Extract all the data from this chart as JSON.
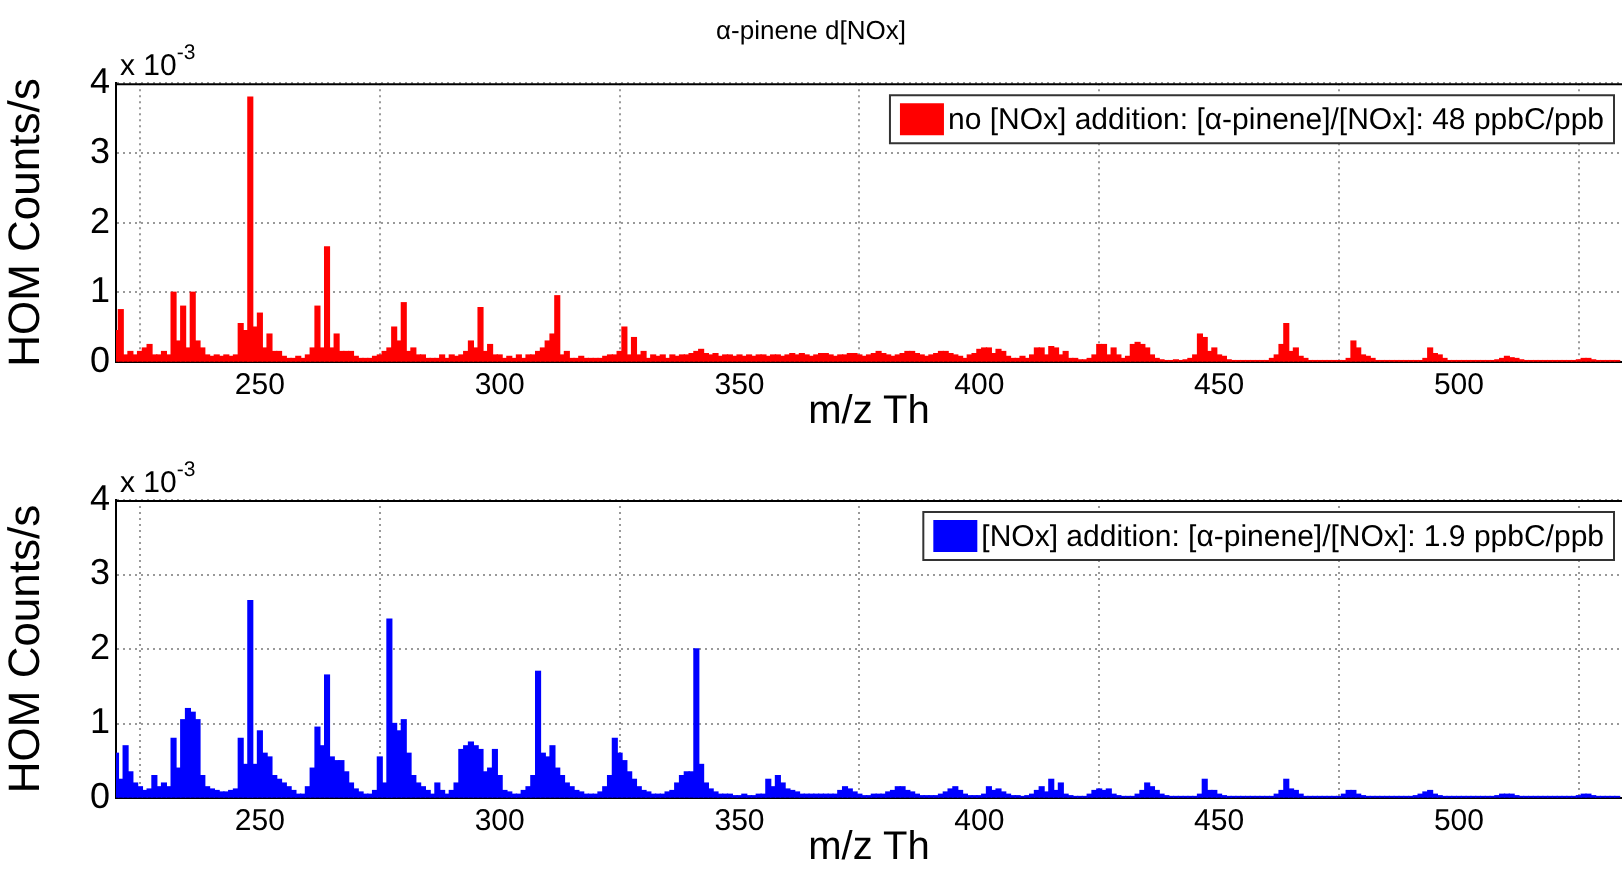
{
  "chart_data": [
    {
      "type": "bar",
      "title": "α-pinene d[NOx]",
      "xlabel": "m/z Th",
      "ylabel": "HOM Counts/s",
      "annotations": [
        "x 10$^{-3}$"
      ],
      "legend": "top right",
      "grid": true,
      "xlim": [
        220,
        534
      ],
      "xticks": [
        250,
        300,
        350,
        400,
        450,
        500
      ],
      "ylim": [
        0,
        4
      ],
      "yticks": [
        0,
        1,
        2,
        3,
        4
      ],
      "x": [
        220,
        221,
        222,
        223,
        224,
        225,
        226,
        227,
        228,
        229,
        230,
        231,
        232,
        233,
        234,
        235,
        236,
        237,
        238,
        239,
        240,
        241,
        242,
        243,
        244,
        245,
        246,
        247,
        248,
        249,
        250,
        251,
        252,
        253,
        254,
        255,
        256,
        257,
        258,
        259,
        260,
        261,
        262,
        263,
        264,
        265,
        266,
        267,
        268,
        269,
        270,
        271,
        272,
        273,
        274,
        275,
        276,
        277,
        278,
        279,
        280,
        281,
        282,
        283,
        284,
        285,
        286,
        287,
        288,
        289,
        290,
        291,
        292,
        293,
        294,
        295,
        296,
        297,
        298,
        299,
        300,
        301,
        302,
        303,
        304,
        305,
        306,
        307,
        308,
        309,
        310,
        311,
        312,
        313,
        314,
        315,
        316,
        317,
        318,
        319,
        320,
        321,
        322,
        323,
        324,
        325,
        326,
        327,
        328,
        329,
        330,
        331,
        332,
        333,
        334,
        335,
        336,
        337,
        338,
        339,
        340,
        341,
        342,
        343,
        344,
        345,
        346,
        347,
        348,
        349,
        350,
        351,
        352,
        353,
        354,
        355,
        356,
        357,
        358,
        359,
        360,
        361,
        362,
        363,
        364,
        365,
        366,
        367,
        368,
        369,
        370,
        371,
        372,
        373,
        374,
        375,
        376,
        377,
        378,
        379,
        380,
        381,
        382,
        383,
        384,
        385,
        386,
        387,
        388,
        389,
        390,
        391,
        392,
        393,
        394,
        395,
        396,
        397,
        398,
        399,
        400,
        401,
        402,
        403,
        404,
        405,
        406,
        407,
        408,
        409,
        410,
        411,
        412,
        413,
        414,
        415,
        416,
        417,
        418,
        419,
        420,
        421,
        422,
        423,
        424,
        425,
        426,
        427,
        428,
        429,
        430,
        431,
        432,
        433,
        434,
        435,
        436,
        437,
        438,
        439,
        440,
        441,
        442,
        443,
        444,
        445,
        446,
        447,
        448,
        449,
        450,
        451,
        452,
        453,
        454,
        455,
        456,
        457,
        458,
        459,
        460,
        461,
        462,
        463,
        464,
        465,
        466,
        467,
        468,
        469,
        470,
        471,
        472,
        473,
        474,
        475,
        476,
        477,
        478,
        479,
        480,
        481,
        482,
        483,
        484,
        485,
        486,
        487,
        488,
        489,
        490,
        491,
        492,
        493,
        494,
        495,
        496,
        497,
        498,
        499,
        500,
        501,
        502,
        503,
        504,
        505,
        506,
        507,
        508,
        509,
        510,
        511,
        512,
        513,
        514,
        515,
        516,
        517,
        518,
        519,
        520,
        521,
        522,
        523,
        524,
        525,
        526,
        527,
        528,
        529,
        530,
        531,
        532,
        533
      ],
      "series": [
        {
          "name": "no [NOx] addition: [α-pinene]/[NOx]: 48 ppbC/ppb",
          "color": "#ff0000",
          "values": [
            0.45,
            0.75,
            0.1,
            0.15,
            0.1,
            0.15,
            0.2,
            0.25,
            0.1,
            0.1,
            0.15,
            0.1,
            1.0,
            0.3,
            0.8,
            0.2,
            1.0,
            0.3,
            0.2,
            0.1,
            0.08,
            0.1,
            0.08,
            0.1,
            0.08,
            0.1,
            0.55,
            0.45,
            3.8,
            0.5,
            0.7,
            0.2,
            0.4,
            0.15,
            0.15,
            0.08,
            0.05,
            0.05,
            0.08,
            0.05,
            0.1,
            0.2,
            0.8,
            0.2,
            1.65,
            0.2,
            0.4,
            0.15,
            0.15,
            0.15,
            0.08,
            0.05,
            0.05,
            0.05,
            0.08,
            0.1,
            0.15,
            0.2,
            0.5,
            0.3,
            0.85,
            0.15,
            0.2,
            0.1,
            0.1,
            0.05,
            0.05,
            0.05,
            0.1,
            0.05,
            0.1,
            0.08,
            0.1,
            0.15,
            0.3,
            0.2,
            0.78,
            0.15,
            0.25,
            0.1,
            0.1,
            0.05,
            0.08,
            0.05,
            0.1,
            0.05,
            0.1,
            0.1,
            0.15,
            0.2,
            0.3,
            0.4,
            0.95,
            0.1,
            0.15,
            0.05,
            0.05,
            0.08,
            0.05,
            0.05,
            0.05,
            0.05,
            0.08,
            0.1,
            0.1,
            0.15,
            0.5,
            0.1,
            0.35,
            0.1,
            0.15,
            0.05,
            0.1,
            0.08,
            0.1,
            0.05,
            0.1,
            0.08,
            0.1,
            0.1,
            0.12,
            0.15,
            0.18,
            0.12,
            0.1,
            0.12,
            0.08,
            0.1,
            0.1,
            0.08,
            0.1,
            0.08,
            0.1,
            0.08,
            0.1,
            0.1,
            0.08,
            0.1,
            0.1,
            0.08,
            0.1,
            0.12,
            0.1,
            0.12,
            0.1,
            0.08,
            0.1,
            0.12,
            0.12,
            0.1,
            0.08,
            0.1,
            0.1,
            0.12,
            0.12,
            0.1,
            0.08,
            0.1,
            0.12,
            0.15,
            0.12,
            0.1,
            0.08,
            0.1,
            0.12,
            0.15,
            0.15,
            0.12,
            0.1,
            0.08,
            0.1,
            0.12,
            0.15,
            0.15,
            0.12,
            0.1,
            0.08,
            0.05,
            0.1,
            0.12,
            0.18,
            0.2,
            0.2,
            0.12,
            0.18,
            0.15,
            0.08,
            0.05,
            0.05,
            0.08,
            0.05,
            0.1,
            0.2,
            0.2,
            0.1,
            0.22,
            0.2,
            0.1,
            0.15,
            0.05,
            0.05,
            0.03,
            0.03,
            0.05,
            0.1,
            0.25,
            0.25,
            0.1,
            0.2,
            0.1,
            0.05,
            0.08,
            0.25,
            0.28,
            0.25,
            0.2,
            0.1,
            0.05,
            0.03,
            0.02,
            0.02,
            0.03,
            0.02,
            0.03,
            0.05,
            0.1,
            0.4,
            0.35,
            0.15,
            0.2,
            0.1,
            0.08,
            0.03,
            0.02,
            0.02,
            0.02,
            0.02,
            0.02,
            0.02,
            0.02,
            0.02,
            0.05,
            0.1,
            0.25,
            0.55,
            0.15,
            0.2,
            0.08,
            0.05,
            0.02,
            0.02,
            0.02,
            0.02,
            0.02,
            0.02,
            0.02,
            0.02,
            0.05,
            0.3,
            0.2,
            0.1,
            0.08,
            0.05,
            0.02,
            0.02,
            0.02,
            0.02,
            0.02,
            0.02,
            0.02,
            0.02,
            0.02,
            0.02,
            0.05,
            0.2,
            0.12,
            0.1,
            0.05,
            0.02,
            0.02,
            0.02,
            0.02,
            0.02,
            0.02,
            0.02,
            0.02,
            0.02,
            0.02,
            0.03,
            0.05,
            0.08,
            0.06,
            0.05,
            0.03,
            0.02,
            0.02,
            0.02,
            0.02,
            0.02,
            0.02,
            0.02,
            0.02,
            0.02,
            0.02,
            0.02,
            0.03,
            0.05,
            0.05,
            0.03,
            0.02,
            0.02,
            0.02,
            0.02,
            0.02
          ]
        }
      ]
    },
    {
      "type": "bar",
      "xlabel": "m/z Th",
      "ylabel": "HOM Counts/s",
      "annotations": [
        "x 10$^{-3}$"
      ],
      "legend": "top right",
      "grid": true,
      "xlim": [
        220,
        534
      ],
      "xticks": [
        250,
        300,
        350,
        400,
        450,
        500
      ],
      "ylim": [
        0,
        4
      ],
      "yticks": [
        0,
        1,
        2,
        3,
        4
      ],
      "x": [
        220,
        221,
        222,
        223,
        224,
        225,
        226,
        227,
        228,
        229,
        230,
        231,
        232,
        233,
        234,
        235,
        236,
        237,
        238,
        239,
        240,
        241,
        242,
        243,
        244,
        245,
        246,
        247,
        248,
        249,
        250,
        251,
        252,
        253,
        254,
        255,
        256,
        257,
        258,
        259,
        260,
        261,
        262,
        263,
        264,
        265,
        266,
        267,
        268,
        269,
        270,
        271,
        272,
        273,
        274,
        275,
        276,
        277,
        278,
        279,
        280,
        281,
        282,
        283,
        284,
        285,
        286,
        287,
        288,
        289,
        290,
        291,
        292,
        293,
        294,
        295,
        296,
        297,
        298,
        299,
        300,
        301,
        302,
        303,
        304,
        305,
        306,
        307,
        308,
        309,
        310,
        311,
        312,
        313,
        314,
        315,
        316,
        317,
        318,
        319,
        320,
        321,
        322,
        323,
        324,
        325,
        326,
        327,
        328,
        329,
        330,
        331,
        332,
        333,
        334,
        335,
        336,
        337,
        338,
        339,
        340,
        341,
        342,
        343,
        344,
        345,
        346,
        347,
        348,
        349,
        350,
        351,
        352,
        353,
        354,
        355,
        356,
        357,
        358,
        359,
        360,
        361,
        362,
        363,
        364,
        365,
        366,
        367,
        368,
        369,
        370,
        371,
        372,
        373,
        374,
        375,
        376,
        377,
        378,
        379,
        380,
        381,
        382,
        383,
        384,
        385,
        386,
        387,
        388,
        389,
        390,
        391,
        392,
        393,
        394,
        395,
        396,
        397,
        398,
        399,
        400,
        401,
        402,
        403,
        404,
        405,
        406,
        407,
        408,
        409,
        410,
        411,
        412,
        413,
        414,
        415,
        416,
        417,
        418,
        419,
        420,
        421,
        422,
        423,
        424,
        425,
        426,
        427,
        428,
        429,
        430,
        431,
        432,
        433,
        434,
        435,
        436,
        437,
        438,
        439,
        440,
        441,
        442,
        443,
        444,
        445,
        446,
        447,
        448,
        449,
        450,
        451,
        452,
        453,
        454,
        455,
        456,
        457,
        458,
        459,
        460,
        461,
        462,
        463,
        464,
        465,
        466,
        467,
        468,
        469,
        470,
        471,
        472,
        473,
        474,
        475,
        476,
        477,
        478,
        479,
        480,
        481,
        482,
        483,
        484,
        485,
        486,
        487,
        488,
        489,
        490,
        491,
        492,
        493,
        494,
        495,
        496,
        497,
        498,
        499,
        500,
        501,
        502,
        503,
        504,
        505,
        506,
        507,
        508,
        509,
        510,
        511,
        512,
        513,
        514,
        515,
        516,
        517,
        518,
        519,
        520,
        521,
        522,
        523,
        524,
        525,
        526,
        527,
        528,
        529,
        530,
        531,
        532,
        533
      ],
      "series": [
        {
          "name": "[NOx] addition: [α-pinene]/[NOx]: 1.9 ppbC/ppb",
          "color": "#0000ff",
          "values": [
            0.6,
            0.25,
            0.7,
            0.35,
            0.2,
            0.15,
            0.1,
            0.12,
            0.3,
            0.15,
            0.2,
            0.15,
            0.8,
            0.4,
            1.05,
            1.2,
            1.15,
            1.05,
            0.3,
            0.15,
            0.12,
            0.1,
            0.08,
            0.08,
            0.1,
            0.12,
            0.8,
            0.45,
            2.65,
            0.45,
            0.9,
            0.6,
            0.55,
            0.3,
            0.25,
            0.2,
            0.15,
            0.1,
            0.05,
            0.05,
            0.15,
            0.4,
            0.95,
            0.7,
            1.65,
            0.55,
            0.5,
            0.5,
            0.35,
            0.2,
            0.12,
            0.08,
            0.05,
            0.05,
            0.1,
            0.55,
            0.2,
            2.4,
            1.0,
            0.9,
            1.05,
            0.6,
            0.3,
            0.2,
            0.15,
            0.1,
            0.05,
            0.2,
            0.1,
            0.05,
            0.1,
            0.2,
            0.65,
            0.7,
            0.75,
            0.7,
            0.65,
            0.35,
            0.4,
            0.65,
            0.3,
            0.1,
            0.08,
            0.05,
            0.05,
            0.1,
            0.15,
            0.3,
            1.7,
            0.6,
            0.55,
            0.7,
            0.4,
            0.3,
            0.2,
            0.15,
            0.1,
            0.08,
            0.05,
            0.05,
            0.05,
            0.08,
            0.15,
            0.3,
            0.8,
            0.6,
            0.5,
            0.35,
            0.25,
            0.15,
            0.1,
            0.08,
            0.05,
            0.05,
            0.05,
            0.08,
            0.1,
            0.2,
            0.3,
            0.35,
            0.35,
            2.0,
            0.45,
            0.2,
            0.12,
            0.08,
            0.05,
            0.05,
            0.05,
            0.03,
            0.03,
            0.05,
            0.03,
            0.03,
            0.05,
            0.05,
            0.25,
            0.15,
            0.3,
            0.2,
            0.12,
            0.1,
            0.08,
            0.05,
            0.05,
            0.05,
            0.05,
            0.05,
            0.05,
            0.05,
            0.05,
            0.1,
            0.15,
            0.12,
            0.08,
            0.05,
            0.03,
            0.03,
            0.05,
            0.05,
            0.05,
            0.08,
            0.1,
            0.15,
            0.15,
            0.1,
            0.08,
            0.05,
            0.03,
            0.03,
            0.03,
            0.03,
            0.05,
            0.08,
            0.12,
            0.15,
            0.1,
            0.05,
            0.03,
            0.03,
            0.03,
            0.05,
            0.15,
            0.1,
            0.12,
            0.08,
            0.05,
            0.03,
            0.03,
            0.02,
            0.03,
            0.05,
            0.1,
            0.15,
            0.08,
            0.25,
            0.1,
            0.2,
            0.05,
            0.03,
            0.02,
            0.02,
            0.02,
            0.05,
            0.1,
            0.12,
            0.1,
            0.12,
            0.05,
            0.03,
            0.02,
            0.02,
            0.02,
            0.05,
            0.1,
            0.2,
            0.15,
            0.1,
            0.05,
            0.03,
            0.02,
            0.02,
            0.02,
            0.02,
            0.02,
            0.02,
            0.05,
            0.25,
            0.1,
            0.1,
            0.05,
            0.03,
            0.02,
            0.02,
            0.02,
            0.02,
            0.02,
            0.02,
            0.02,
            0.02,
            0.02,
            0.02,
            0.05,
            0.1,
            0.25,
            0.12,
            0.1,
            0.05,
            0.02,
            0.02,
            0.02,
            0.02,
            0.02,
            0.02,
            0.02,
            0.02,
            0.05,
            0.1,
            0.1,
            0.05,
            0.03,
            0.02,
            0.02,
            0.02,
            0.02,
            0.02,
            0.02,
            0.02,
            0.02,
            0.02,
            0.02,
            0.03,
            0.05,
            0.08,
            0.1,
            0.05,
            0.03,
            0.02,
            0.02,
            0.02,
            0.02,
            0.02,
            0.02,
            0.02,
            0.02,
            0.02,
            0.02,
            0.02,
            0.03,
            0.05,
            0.05,
            0.05,
            0.03,
            0.02,
            0.02,
            0.02,
            0.02,
            0.02,
            0.02,
            0.02,
            0.02,
            0.02,
            0.02,
            0.02,
            0.02,
            0.03,
            0.05,
            0.05,
            0.03,
            0.02,
            0.02,
            0.02,
            0.02,
            0.02
          ]
        }
      ]
    }
  ]
}
